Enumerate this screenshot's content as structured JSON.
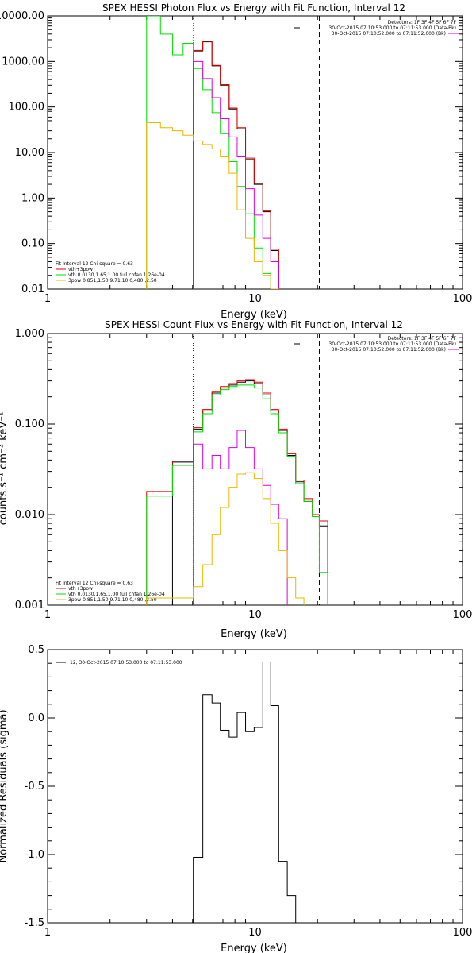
{
  "chart_data": [
    {
      "type": "line",
      "title": "SPEX HESSI Photon Flux vs Energy with Fit Function, Interval 12",
      "xlabel": "Energy (keV)",
      "ylabel": "",
      "xscale": "log",
      "yscale": "log",
      "xlim": [
        1,
        100
      ],
      "ylim": [
        0.01,
        10000
      ],
      "x_ticks": [
        1,
        10,
        100
      ],
      "x_tick_labels": [
        "1",
        "10",
        "100"
      ],
      "y_ticks": [
        0.01,
        0.1,
        1,
        10,
        100,
        1000,
        10000
      ],
      "y_tick_labels": [
        "0.01",
        "0.10",
        "1.00",
        "10.00",
        "100.00",
        "1000.00",
        "10000.00"
      ],
      "top_right_text": [
        "Detectors: 1F 3F 4F 5F 6F 7F",
        "30-Oct-2015 07:10:53.000 to 07:11:53.000 (Data-Bk)",
        "30-Oct-2015 07:10:52.000 to 07:11:52.000 (Bk)"
      ],
      "legend": [
        "Fit Interval 12   Chi-square = 0.63",
        "vth+3pow",
        "vth 0.0130,1.65,1.00  full chfan 1.26e-04",
        "3pow 0.851,1.50,9.71,10.0,480.,2.50"
      ],
      "legend_colors": [
        "#000000",
        "#dd0000",
        "#00dd00",
        "#e8b800"
      ],
      "vlines": [
        {
          "x": 5.04,
          "style": "dotted",
          "color": "#cc00cc"
        },
        {
          "x": 20.4,
          "style": "dashed",
          "color": "#000000"
        }
      ],
      "bin_edges": [
        3.0,
        3.5,
        4.0,
        4.5,
        5.04,
        5.6,
        6.2,
        6.8,
        7.5,
        8.2,
        9.0,
        9.9,
        10.9,
        11.9,
        13.0,
        14.3,
        15.7,
        17.2,
        18.9,
        20.4,
        22.4
      ],
      "series": [
        {
          "color": "#000000",
          "values": [
            null,
            null,
            null,
            null,
            1700,
            2700,
            800,
            300,
            90,
            33,
            7,
            2.0,
            0.5,
            0.07,
            null,
            null,
            null,
            null,
            null,
            null
          ]
        },
        {
          "color": "#dd0000",
          "values": [
            null,
            null,
            null,
            null,
            1750,
            2750,
            820,
            310,
            95,
            35,
            7.5,
            2.1,
            0.52,
            0.075,
            null,
            null,
            null,
            null,
            null,
            null
          ]
        },
        {
          "color": "#00dd00",
          "values": [
            10000,
            4000,
            1400,
            2500,
            700,
            240,
            75,
            26,
            6.3,
            1.8,
            0.45,
            0.08,
            0.022,
            null,
            null,
            null,
            null,
            null,
            null,
            null
          ]
        },
        {
          "color": "#dd00dd",
          "values": [
            null,
            null,
            null,
            null,
            1000,
            420,
            160,
            55,
            22,
            8,
            1.6,
            0.42,
            0.13,
            0.04,
            null,
            null,
            null,
            null,
            null,
            null
          ]
        },
        {
          "color": "#e8b800",
          "values": [
            45,
            35,
            30,
            24,
            18,
            15,
            12,
            8,
            3.5,
            0.55,
            0.13,
            0.04,
            0.02,
            0.01,
            null,
            null,
            null,
            null,
            null,
            null
          ]
        }
      ]
    },
    {
      "type": "line",
      "title": "SPEX HESSI Count Flux vs Energy with Fit Function, Interval 12",
      "xlabel": "Energy (keV)",
      "ylabel": "counts s⁻¹ cm⁻² keV⁻¹",
      "xscale": "log",
      "yscale": "log",
      "xlim": [
        1,
        100
      ],
      "ylim": [
        0.001,
        1.0
      ],
      "x_ticks": [
        1,
        10,
        100
      ],
      "x_tick_labels": [
        "1",
        "10",
        "100"
      ],
      "y_ticks": [
        0.001,
        0.01,
        0.1,
        1.0
      ],
      "y_tick_labels": [
        "0.001",
        "0.010",
        "0.100",
        "1.000"
      ],
      "top_right_text": [
        "Detectors: 1F 3F 4F 5F 6F 7F",
        "30-Oct-2015 07:10:53.000 to 07:11:53.000 (Data-Bk)",
        "30-Oct-2015 07:10:52.000 to 07:11:52.000 (Bk)"
      ],
      "legend": [
        "Fit Interval 12   Chi-square = 0.63",
        "vth+3pow",
        "vth 0.0130,1.65,1.00  full chfan 1.26e-04",
        "3pow 0.851,1.50,9.71,10.0,480.,2.50"
      ],
      "legend_colors": [
        "#000000",
        "#dd0000",
        "#00dd00",
        "#e8b800"
      ],
      "vlines": [
        {
          "x": 5.04,
          "style": "dotted",
          "color": "#000000"
        },
        {
          "x": 20.4,
          "style": "dashed",
          "color": "#000000"
        }
      ],
      "bin_edges": [
        3.0,
        3.5,
        4.0,
        4.5,
        5.04,
        5.6,
        6.2,
        6.8,
        7.5,
        8.2,
        9.0,
        9.9,
        10.9,
        11.9,
        13.0,
        14.3,
        15.7,
        17.2,
        18.9,
        20.4,
        22.4
      ],
      "series": [
        {
          "color": "#000000",
          "values": [
            null,
            null,
            0.038,
            0.038,
            0.088,
            0.14,
            0.22,
            0.25,
            0.27,
            0.29,
            0.3,
            0.28,
            0.21,
            0.14,
            0.085,
            0.045,
            0.023,
            0.014,
            0.0095,
            0.0075
          ]
        },
        {
          "color": "#dd0000",
          "values": [
            0.018,
            0.018,
            0.039,
            0.039,
            0.091,
            0.145,
            0.23,
            0.26,
            0.28,
            0.3,
            0.31,
            0.29,
            0.22,
            0.145,
            0.088,
            0.047,
            0.024,
            0.015,
            0.01,
            0.0085
          ]
        },
        {
          "color": "#00dd00",
          "values": [
            0.016,
            0.016,
            0.035,
            0.035,
            0.082,
            0.13,
            0.21,
            0.24,
            0.26,
            0.27,
            0.27,
            0.25,
            0.19,
            0.13,
            0.08,
            0.044,
            0.022,
            0.014,
            0.0095,
            0.0023
          ]
        },
        {
          "color": "#dd00dd",
          "values": [
            null,
            null,
            null,
            null,
            0.06,
            0.032,
            0.045,
            0.032,
            0.055,
            0.085,
            0.055,
            0.032,
            0.021,
            0.013,
            0.009,
            null,
            null,
            null,
            null,
            null
          ]
        },
        {
          "color": "#e8b800",
          "values": [
            0.0012,
            0.0012,
            0.0012,
            0.0012,
            0.0016,
            0.0028,
            0.006,
            0.012,
            0.02,
            0.028,
            0.029,
            0.025,
            0.015,
            0.008,
            0.004,
            0.002,
            0.0012,
            null,
            null,
            null
          ]
        }
      ]
    },
    {
      "type": "line",
      "title": "",
      "xlabel": "Energy (keV)",
      "ylabel": "Normalized Residuals (sigma)",
      "xscale": "log",
      "yscale": "linear",
      "xlim": [
        1,
        100
      ],
      "ylim": [
        -1.5,
        0.5
      ],
      "x_ticks": [
        1,
        10,
        100
      ],
      "x_tick_labels": [
        "1",
        "10",
        "100"
      ],
      "y_ticks": [
        -1.5,
        -1.0,
        -0.5,
        0.0,
        0.5
      ],
      "y_tick_labels": [
        "-1.5",
        "-1.0",
        "-0.5",
        "0.0",
        "0.5"
      ],
      "legend": [
        "12, 30-Oct-2015 07:10:53.000 to 07:11:53.000"
      ],
      "legend_colors": [
        "#000000"
      ],
      "bin_edges": [
        5.04,
        5.6,
        6.2,
        6.8,
        7.5,
        8.2,
        9.0,
        9.9,
        10.9,
        11.9,
        13.0,
        14.3,
        15.7,
        17.2,
        18.9,
        20.4
      ],
      "series": [
        {
          "color": "#000000",
          "values": [
            -1.02,
            0.17,
            0.11,
            -0.09,
            -0.14,
            0.04,
            -0.1,
            -0.07,
            0.41,
            0.09,
            -1.05,
            -1.3,
            null,
            null,
            null
          ]
        }
      ]
    }
  ]
}
